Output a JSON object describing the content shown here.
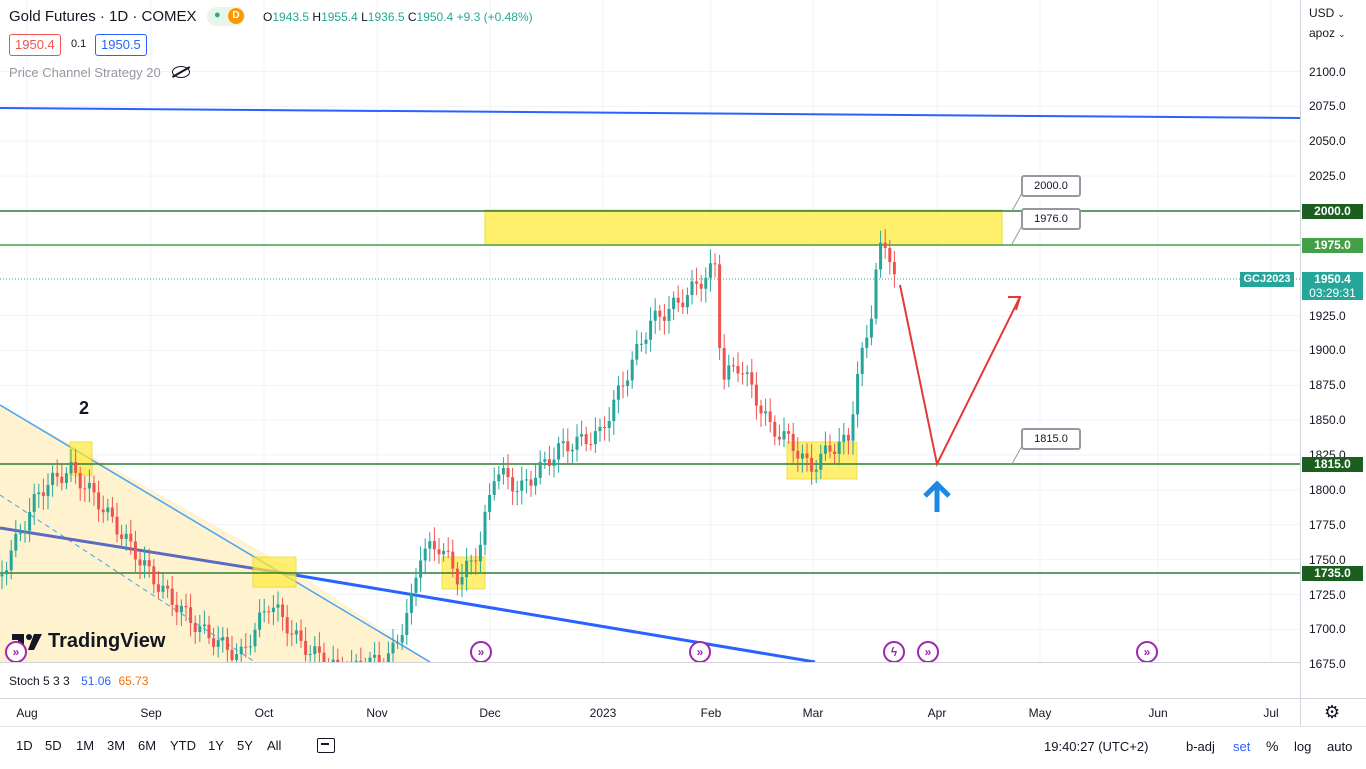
{
  "header": {
    "symbol": "Gold Futures · 1D · COMEX",
    "status_dot": "●",
    "delay_badge": "D",
    "ohlc": {
      "o_label": "O",
      "o": "1943.5",
      "h_label": "H",
      "h": "1955.4",
      "l_label": "L",
      "l": "1936.5",
      "c_label": "C",
      "c": "1950.4",
      "change": "+9.3 (+0.48%)"
    },
    "sell_price": "1950.4",
    "spread": "0.1",
    "buy_price": "1950.5",
    "indicator": "Price Channel Strategy 20",
    "indicator_icon": "eye-crossed-icon"
  },
  "axis": {
    "currency": "USD",
    "user": "apoz",
    "ticks": [
      "2100.0",
      "2075.0",
      "2050.0",
      "2025.0",
      "1925.0",
      "1900.0",
      "1875.0",
      "1850.0",
      "1825.0",
      "1800.0",
      "1775.0",
      "1750.0",
      "1725.0",
      "1700.0",
      "1675.0"
    ],
    "tags": {
      "level_2000": "2000.0",
      "level_1975": "1975.0",
      "level_1815": "1815.0",
      "level_1735": "1735.0",
      "last_price": "1950.4",
      "countdown": "03:29:31",
      "symbol_tag": "GCJ2023"
    }
  },
  "callouts": {
    "c2000": "2000.0",
    "c1976": "1976.0",
    "c1815": "1815.0"
  },
  "chart_labels": {
    "wave_number": "2",
    "watermark": "TradingView"
  },
  "time_axis": [
    "Aug",
    "Sep",
    "Oct",
    "Nov",
    "Dec",
    "2023",
    "Feb",
    "Mar",
    "Apr",
    "May",
    "Jun",
    "Jul"
  ],
  "stoch": {
    "label": "Stoch 5 3 3",
    "k": "51.06",
    "d": "65.73"
  },
  "bottom_bar": {
    "timeframes": [
      "1D",
      "5D",
      "1M",
      "3M",
      "6M",
      "YTD",
      "1Y",
      "5Y",
      "All"
    ],
    "clock": "19:40:27 (UTC+2)",
    "badj": "b-adj",
    "set": "set",
    "percent": "%",
    "log": "log",
    "auto": "auto"
  },
  "colors": {
    "up": "#26a69a",
    "down": "#ef5350",
    "level_green": "#2e7d32",
    "highlight": "#ffeb3b",
    "channel_blue": "#2962ff",
    "arrow_red": "#e53935",
    "arrow_blue": "#1e88e5",
    "tv_blue": "#2962ff"
  }
}
